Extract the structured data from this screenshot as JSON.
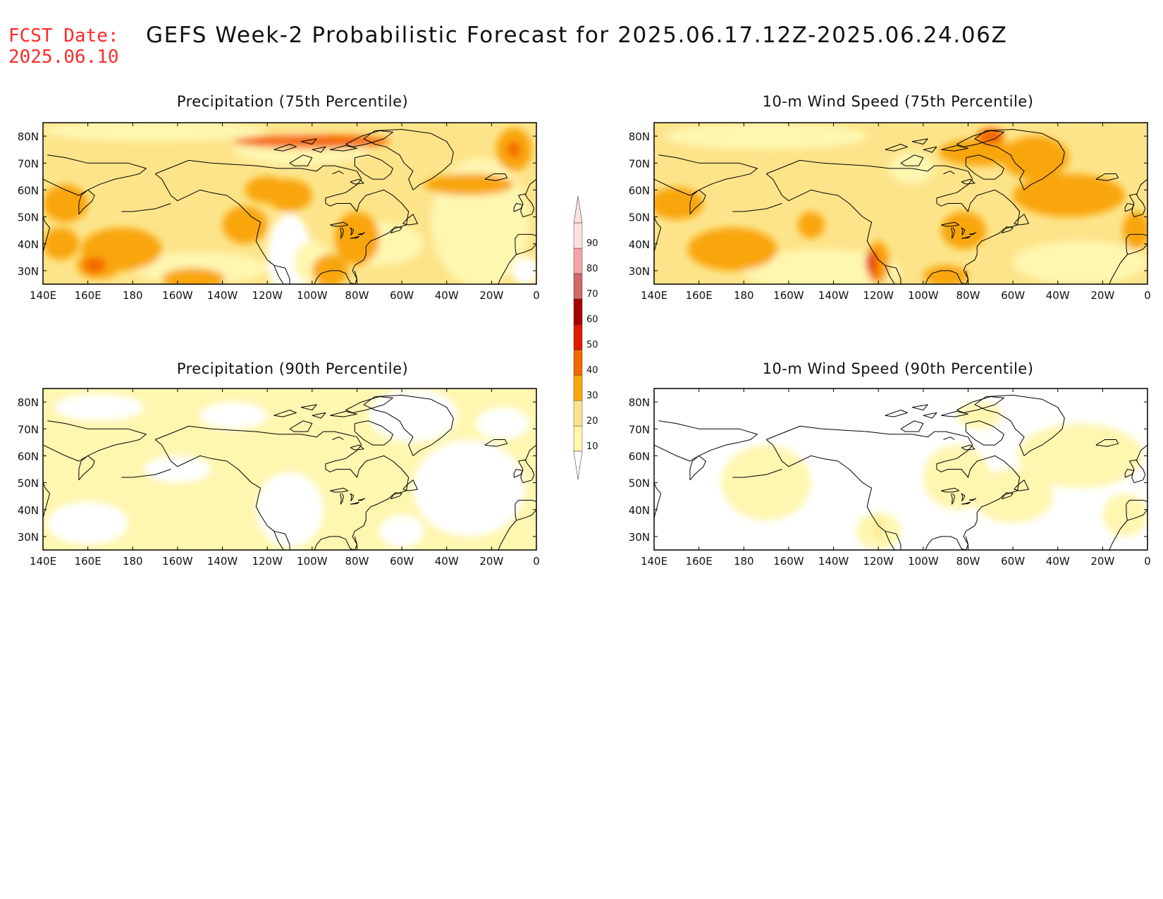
{
  "header": {
    "fcst_date_label": "FCST Date:",
    "fcst_date_value": "2025.06.10",
    "title": "GEFS Week-2 Probabilistic Forecast for 2025.06.17.12Z-2025.06.24.06Z"
  },
  "panels": [
    {
      "id": "precip-75",
      "title": "Precipitation (75th Percentile)",
      "variable": "precipitation",
      "percentile": 75
    },
    {
      "id": "wind-75",
      "title": "10-m Wind Speed (75th Percentile)",
      "variable": "wind",
      "percentile": 75
    },
    {
      "id": "precip-90",
      "title": "Precipitation (90th Percentile)",
      "variable": "precipitation",
      "percentile": 90
    },
    {
      "id": "wind-90",
      "title": "10-m Wind Speed (90th Percentile)",
      "variable": "wind",
      "percentile": 90
    }
  ],
  "axes": {
    "lon_ticks": [
      "140E",
      "160E",
      "180",
      "160W",
      "140W",
      "120W",
      "100W",
      "80W",
      "60W",
      "40W",
      "20W",
      "0"
    ],
    "lat_ticks": [
      "80N",
      "70N",
      "60N",
      "50N",
      "40N",
      "30N"
    ],
    "lon_range_deg_east": [
      140,
      360
    ],
    "lat_range": [
      25,
      85
    ]
  },
  "colorbar": {
    "levels": [
      10,
      20,
      30,
      40,
      50,
      60,
      70,
      80,
      90
    ],
    "labels": [
      "10",
      "20",
      "30",
      "40",
      "50",
      "60",
      "70",
      "80",
      "90"
    ],
    "colors": [
      "#fff6b0",
      "#fde48a",
      "#f9a60f",
      "#f56800",
      "#df1a00",
      "#a80000",
      "#d06868",
      "#f3a4a8",
      "#fce0e2"
    ]
  },
  "map_style": {
    "coastline_color": "#000000",
    "missing_color": "#ffffff"
  }
}
